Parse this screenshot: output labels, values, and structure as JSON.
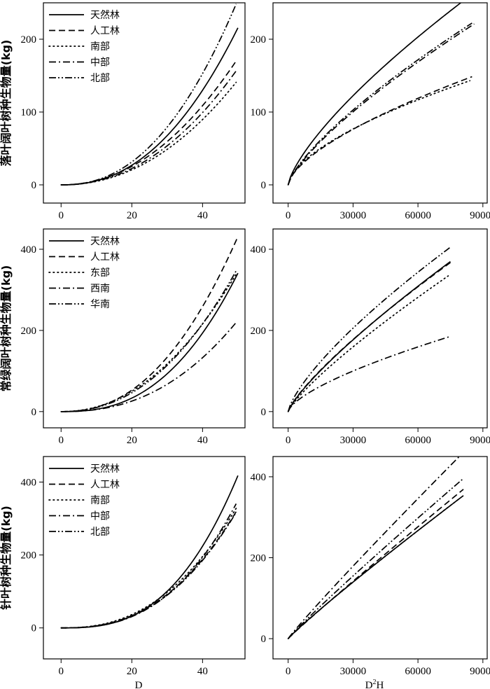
{
  "chart_data": [
    {
      "id": "p1",
      "type": "line",
      "ylabel": "落叶阔叶树种生物量(kg)",
      "xlabel": "",
      "xlim": [
        -5,
        52
      ],
      "ylim": [
        -25,
        250
      ],
      "xticks": [
        0,
        20,
        40
      ],
      "yticks": [
        0,
        100,
        200
      ],
      "legend": "top-left",
      "series": [
        {
          "name": "天然林",
          "style": "solid",
          "a": 0.03,
          "b": 2.27,
          "x_end": 50
        },
        {
          "name": "人工林",
          "style": "dash",
          "a": 0.047,
          "b": 2.1,
          "x_end": 49.5
        },
        {
          "name": "南部",
          "style": "dot",
          "a": 0.036,
          "b": 2.12,
          "x_end": 49.5
        },
        {
          "name": "中部",
          "style": "dashdot",
          "a": 0.037,
          "b": 2.14,
          "x_end": 49.5
        },
        {
          "name": "北部",
          "style": "dashdotdot",
          "a": 0.034,
          "b": 2.28,
          "x_end": 49.5
        }
      ]
    },
    {
      "id": "p2",
      "type": "line",
      "ylabel": "",
      "xlabel": "",
      "xlim": [
        -7000,
        92000
      ],
      "ylim": [
        -25,
        250
      ],
      "xticks": [
        0,
        30000,
        60000,
        90000
      ],
      "yticks": [
        0,
        100,
        200
      ],
      "legend": "none",
      "series": [
        {
          "name": "天然林",
          "style": "solid",
          "a": 0.066,
          "b": 0.73,
          "x_end": 80000
        },
        {
          "name": "人工林",
          "style": "dash",
          "a": 0.104,
          "b": 0.64,
          "x_end": 85000
        },
        {
          "name": "南部",
          "style": "dot",
          "a": 0.15,
          "b": 0.605,
          "x_end": 84000
        },
        {
          "name": "中部",
          "style": "dashdot",
          "a": 0.044,
          "b": 0.75,
          "x_end": 86000
        },
        {
          "name": "北部",
          "style": "dashdotdot",
          "a": 0.05,
          "b": 0.74,
          "x_end": 85000
        }
      ]
    },
    {
      "id": "p3",
      "type": "line",
      "ylabel": "常绿阔叶树种生物量(kg)",
      "xlabel": "",
      "xlim": [
        -5,
        52
      ],
      "ylim": [
        -40,
        450
      ],
      "xticks": [
        0,
        20,
        40
      ],
      "yticks": [
        0,
        200,
        400
      ],
      "legend": "top-left",
      "series": [
        {
          "name": "天然林",
          "style": "solid",
          "a": 0.0165,
          "b": 2.54,
          "x_end": 50
        },
        {
          "name": "人工林",
          "style": "dash",
          "a": 0.0555,
          "b": 2.29,
          "x_end": 50
        },
        {
          "name": "东部",
          "style": "dot",
          "a": 0.09,
          "b": 2.11,
          "x_end": 49.5
        },
        {
          "name": "西南",
          "style": "dashdot",
          "a": 0.022,
          "b": 2.36,
          "x_end": 49.5
        },
        {
          "name": "华南",
          "style": "dashdotdot",
          "a": 0.06,
          "b": 2.22,
          "x_end": 49.5
        }
      ]
    },
    {
      "id": "p4",
      "type": "line",
      "ylabel": "",
      "xlabel": "",
      "xlim": [
        -7000,
        92000
      ],
      "ylim": [
        -40,
        450
      ],
      "xticks": [
        0,
        30000,
        60000,
        90000
      ],
      "yticks": [
        0,
        200,
        400
      ],
      "legend": "none",
      "series": [
        {
          "name": "天然林",
          "style": "solid",
          "a": 0.044,
          "b": 0.805,
          "x_end": 75000
        },
        {
          "name": "人工林",
          "style": "dash",
          "a": 0.05,
          "b": 0.793,
          "x_end": 75000
        },
        {
          "name": "东部",
          "style": "dot",
          "a": 0.034,
          "b": 0.82,
          "x_end": 74000
        },
        {
          "name": "西南",
          "style": "dashdot",
          "a": 0.097,
          "b": 0.673,
          "x_end": 75000
        },
        {
          "name": "华南",
          "style": "dashdotdot",
          "a": 0.1,
          "b": 0.74,
          "x_end": 75000
        }
      ]
    },
    {
      "id": "p5",
      "type": "line",
      "ylabel": "针叶树种生物量(kg)",
      "xlabel": "D",
      "xlim": [
        -5,
        52
      ],
      "ylim": [
        -85,
        470
      ],
      "xticks": [
        0,
        20,
        40
      ],
      "yticks": [
        0,
        200,
        400
      ],
      "legend": "top-left",
      "series": [
        {
          "name": "天然林",
          "style": "solid",
          "a": 0.0076,
          "b": 2.79,
          "x_end": 50
        },
        {
          "name": "人工林",
          "style": "dash",
          "a": 0.02,
          "b": 2.48,
          "x_end": 49.5
        },
        {
          "name": "南部",
          "style": "dot",
          "a": 0.026,
          "b": 2.42,
          "x_end": 49.5
        },
        {
          "name": "中部",
          "style": "dashdot",
          "a": 0.011,
          "b": 2.65,
          "x_end": 49.5
        },
        {
          "name": "北部",
          "style": "dashdotdot",
          "a": 0.017,
          "b": 2.52,
          "x_end": 49.5
        }
      ]
    },
    {
      "id": "p6",
      "type": "line",
      "ylabel": "",
      "xlabel": "D²H",
      "xlim": [
        -7000,
        92000
      ],
      "ylim": [
        -50,
        450
      ],
      "xticks": [
        0,
        30000,
        60000,
        90000
      ],
      "yticks": [
        0,
        200,
        400
      ],
      "legend": "none",
      "series": [
        {
          "name": "天然林",
          "style": "solid",
          "a": 0.0092,
          "b": 0.934,
          "x_end": 81000
        },
        {
          "name": "人工林",
          "style": "dash",
          "a": 0.007,
          "b": 0.962,
          "x_end": 81000
        },
        {
          "name": "南部",
          "style": "dot",
          "a": 0.0091,
          "b": 0.935,
          "x_end": 78500
        },
        {
          "name": "中部",
          "style": "dashdot",
          "a": 0.01,
          "b": 0.95,
          "x_end": 82000
        },
        {
          "name": "北部",
          "style": "dashdotdot",
          "a": 0.0092,
          "b": 0.944,
          "x_end": 81000
        }
      ]
    }
  ]
}
